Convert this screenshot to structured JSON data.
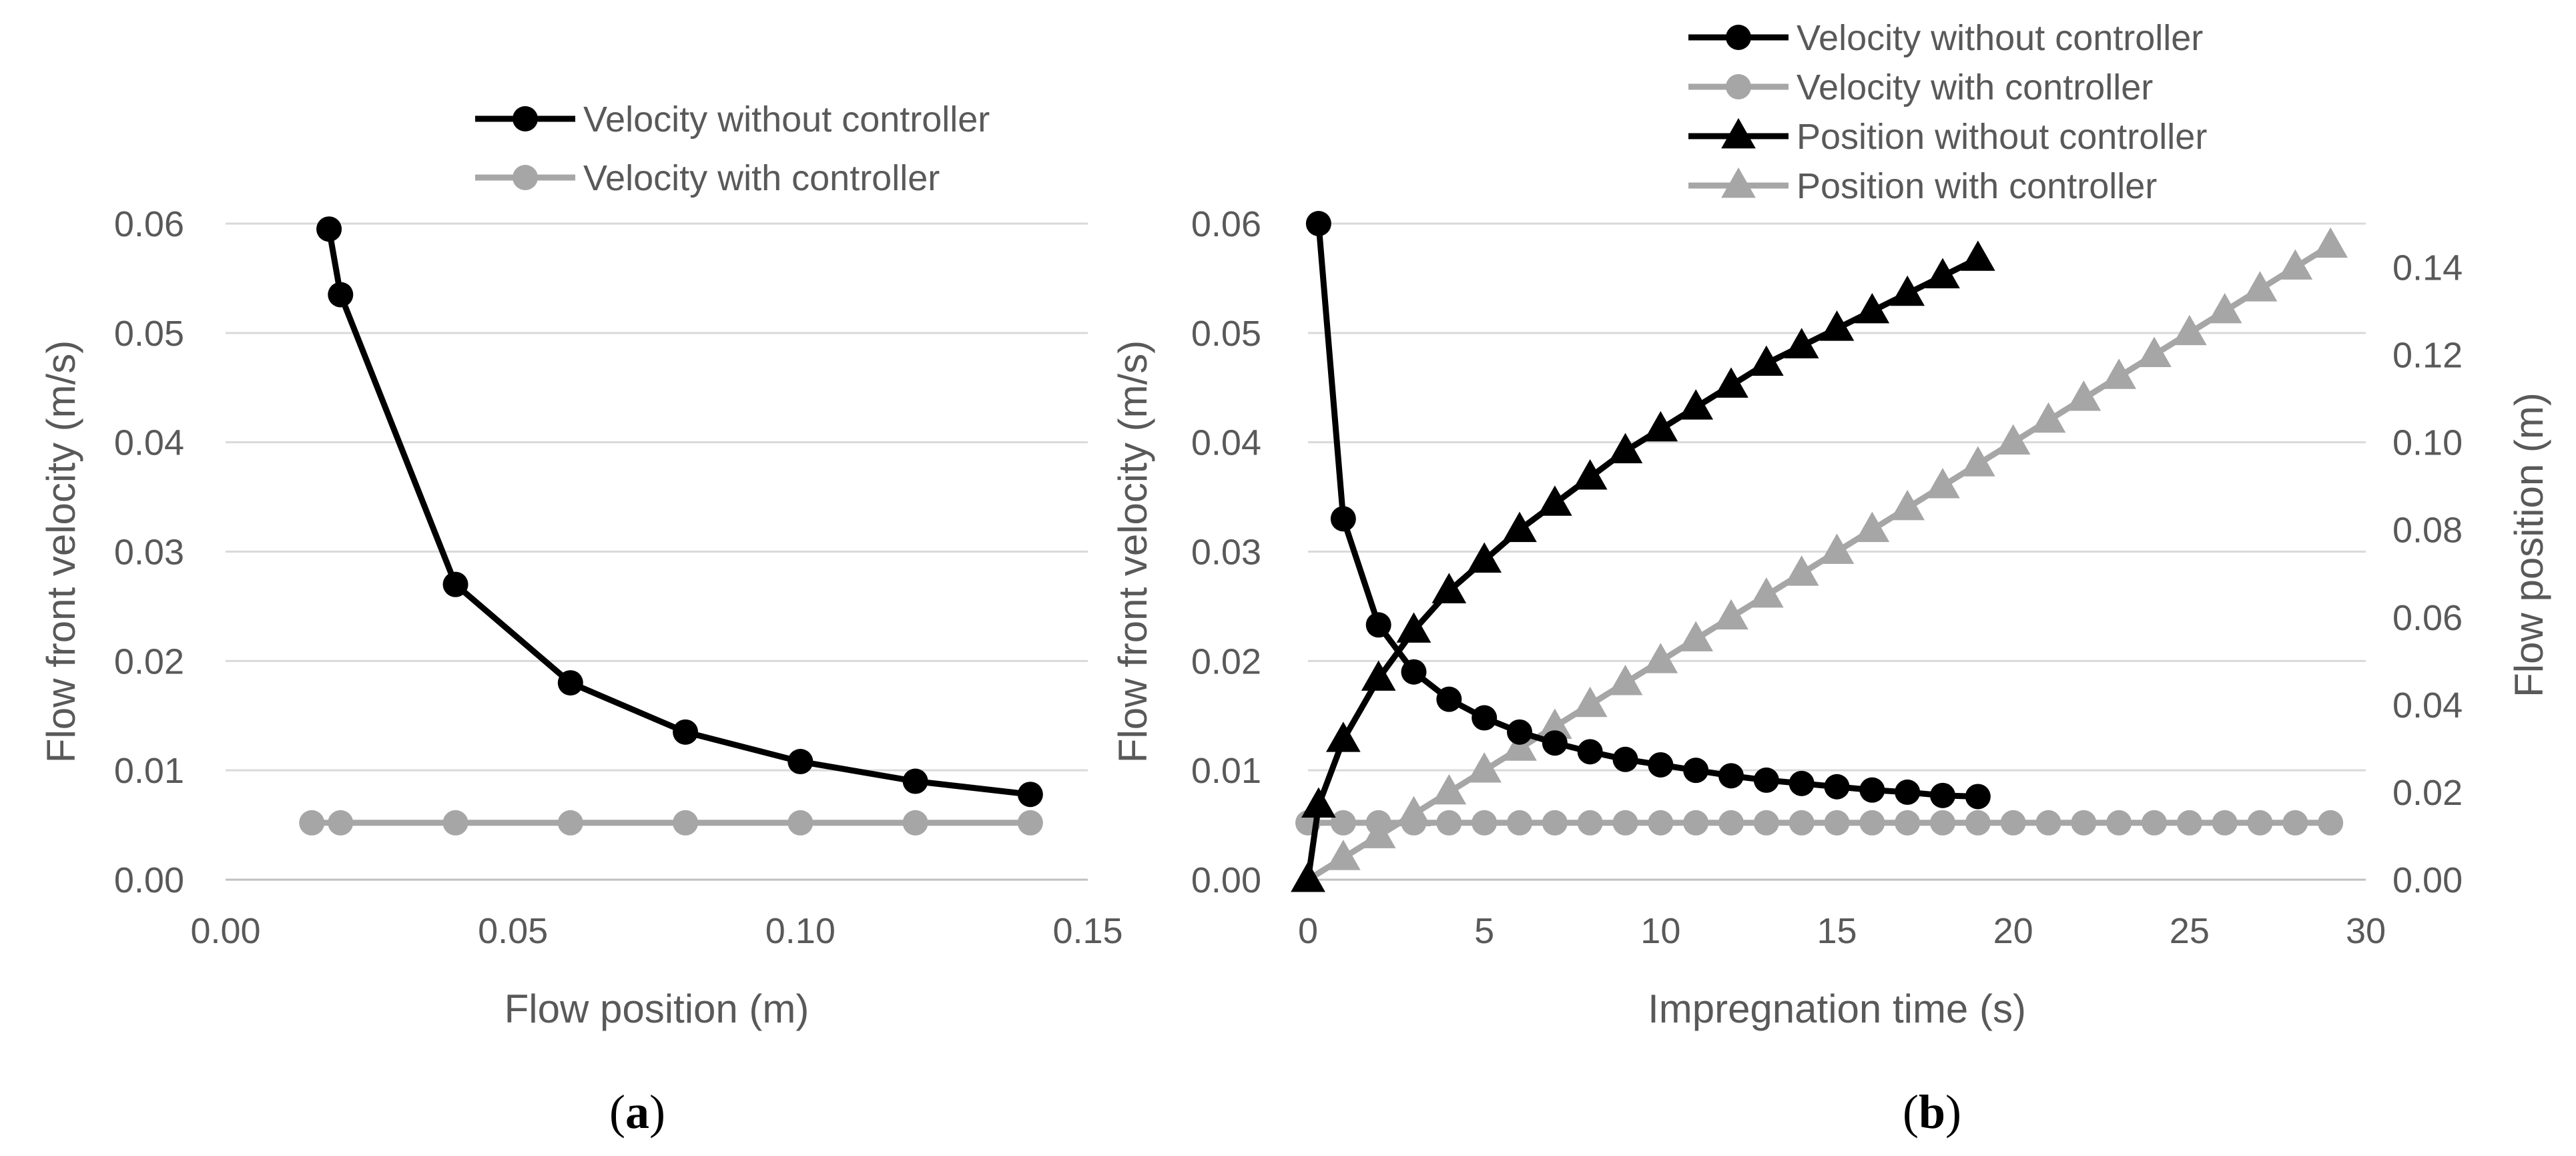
{
  "chart_data": [
    {
      "type": "line",
      "panel_label": "(a)",
      "panel_letter": "a",
      "xlabel": "Flow position (m)",
      "ylabel": "Flow front velocity (m/s)",
      "xlim": [
        0,
        0.15
      ],
      "ylim": [
        0,
        0.06
      ],
      "x_ticks": [
        "0.00",
        "0.05",
        "0.10",
        "0.15"
      ],
      "y_ticks": [
        "0.00",
        "0.01",
        "0.02",
        "0.03",
        "0.04",
        "0.05",
        "0.06"
      ],
      "series": [
        {
          "name": "Velocity without controller",
          "color": "#000000",
          "marker": "circle",
          "x": [
            0.018,
            0.02,
            0.04,
            0.06,
            0.08,
            0.1,
            0.12,
            0.14
          ],
          "y": [
            0.0595,
            0.0535,
            0.027,
            0.018,
            0.0135,
            0.0108,
            0.009,
            0.0078
          ]
        },
        {
          "name": "Velocity with controller",
          "color": "#a6a6a6",
          "marker": "circle",
          "x": [
            0.015,
            0.02,
            0.04,
            0.06,
            0.08,
            0.1,
            0.12,
            0.14
          ],
          "y": [
            0.0052,
            0.0052,
            0.0052,
            0.0052,
            0.0052,
            0.0052,
            0.0052,
            0.0052
          ]
        }
      ]
    },
    {
      "type": "line",
      "panel_label": "(b)",
      "panel_letter": "b",
      "xlabel": "Impregnation time (s)",
      "ylabel": "Flow front velocity (m/s)",
      "y2label": "Flow position (m)",
      "xlim": [
        0,
        30
      ],
      "ylim": [
        0,
        0.06
      ],
      "y2lim": [
        0,
        0.15
      ],
      "x_ticks": [
        "0",
        "5",
        "10",
        "15",
        "20",
        "25",
        "30"
      ],
      "y_ticks": [
        "0.00",
        "0.01",
        "0.02",
        "0.03",
        "0.04",
        "0.05",
        "0.06"
      ],
      "y2_ticks": [
        "0.00",
        "0.02",
        "0.04",
        "0.06",
        "0.08",
        "0.10",
        "0.12",
        "0.14"
      ],
      "series": [
        {
          "name": "Velocity without controller",
          "color": "#000000",
          "marker": "circle",
          "axis": "left",
          "x": [
            0.3,
            1,
            2,
            3,
            4,
            5,
            6,
            7,
            8,
            9,
            10,
            11,
            12,
            13,
            14,
            15,
            16,
            17,
            18,
            19
          ],
          "y": [
            0.06,
            0.033,
            0.0233,
            0.019,
            0.0165,
            0.0148,
            0.0135,
            0.0125,
            0.0117,
            0.011,
            0.0105,
            0.01,
            0.0095,
            0.0091,
            0.0088,
            0.0085,
            0.0082,
            0.008,
            0.0077,
            0.0076
          ]
        },
        {
          "name": "Velocity with controller",
          "color": "#a6a6a6",
          "marker": "circle",
          "axis": "left",
          "x": [
            0,
            1,
            2,
            3,
            4,
            5,
            6,
            7,
            8,
            9,
            10,
            11,
            12,
            13,
            14,
            15,
            16,
            17,
            18,
            19,
            20,
            21,
            22,
            23,
            24,
            25,
            26,
            27,
            28,
            29
          ],
          "y": [
            0.0052,
            0.0052,
            0.0052,
            0.0052,
            0.0052,
            0.0052,
            0.0052,
            0.0052,
            0.0052,
            0.0052,
            0.0052,
            0.0052,
            0.0052,
            0.0052,
            0.0052,
            0.0052,
            0.0052,
            0.0052,
            0.0052,
            0.0052,
            0.0052,
            0.0052,
            0.0052,
            0.0052,
            0.0052,
            0.0052,
            0.0052,
            0.0052,
            0.0052,
            0.0052
          ]
        },
        {
          "name": "Position without controller",
          "color": "#000000",
          "marker": "triangle",
          "axis": "right",
          "x": [
            0,
            0.3,
            1,
            2,
            3,
            4,
            5,
            6,
            7,
            8,
            9,
            10,
            11,
            12,
            13,
            14,
            15,
            16,
            17,
            18,
            19
          ],
          "y": [
            0,
            0.017,
            0.032,
            0.046,
            0.057,
            0.066,
            0.073,
            0.08,
            0.086,
            0.092,
            0.098,
            0.103,
            0.108,
            0.113,
            0.118,
            0.122,
            0.126,
            0.13,
            0.134,
            0.138,
            0.142
          ]
        },
        {
          "name": "Position with controller",
          "color": "#a6a6a6",
          "marker": "triangle",
          "axis": "right",
          "x": [
            0,
            1,
            2,
            3,
            4,
            5,
            6,
            7,
            8,
            9,
            10,
            11,
            12,
            13,
            14,
            15,
            16,
            17,
            18,
            19,
            20,
            21,
            22,
            23,
            24,
            25,
            26,
            27,
            28,
            29
          ],
          "y": [
            0,
            0.005,
            0.01,
            0.015,
            0.02,
            0.025,
            0.03,
            0.035,
            0.04,
            0.045,
            0.05,
            0.055,
            0.06,
            0.065,
            0.07,
            0.075,
            0.08,
            0.085,
            0.09,
            0.095,
            0.1,
            0.105,
            0.11,
            0.115,
            0.12,
            0.125,
            0.13,
            0.135,
            0.14,
            0.145
          ]
        }
      ]
    }
  ]
}
